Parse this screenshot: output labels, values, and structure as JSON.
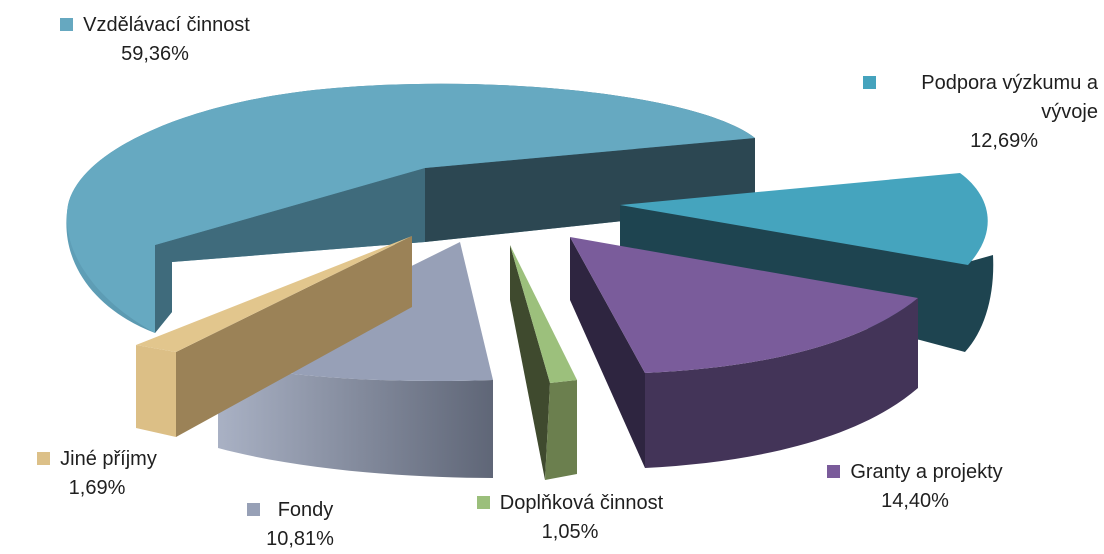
{
  "chart_data": {
    "type": "pie",
    "style": "3d-exploded",
    "slices": [
      {
        "label": "Vzdělávací činnost",
        "value": 59.36,
        "value_label": "59,36%",
        "color": "#66a8c0"
      },
      {
        "label": "Podpora výzkumu a vývoje",
        "value": 12.69,
        "value_label": "12,69%",
        "color": "#45a3bd"
      },
      {
        "label": "Granty a projekty",
        "value": 14.4,
        "value_label": "14,40%",
        "color": "#7a5b9a"
      },
      {
        "label": "Doplňková činnost",
        "value": 1.05,
        "value_label": "1,05%",
        "color": "#9bbf7b"
      },
      {
        "label": "Fondy",
        "value": 10.81,
        "value_label": "10,81%",
        "color": "#97a0b6"
      },
      {
        "label": "Jiné příjmy",
        "value": 1.69,
        "value_label": "1,69%",
        "color": "#dcc088"
      }
    ]
  }
}
